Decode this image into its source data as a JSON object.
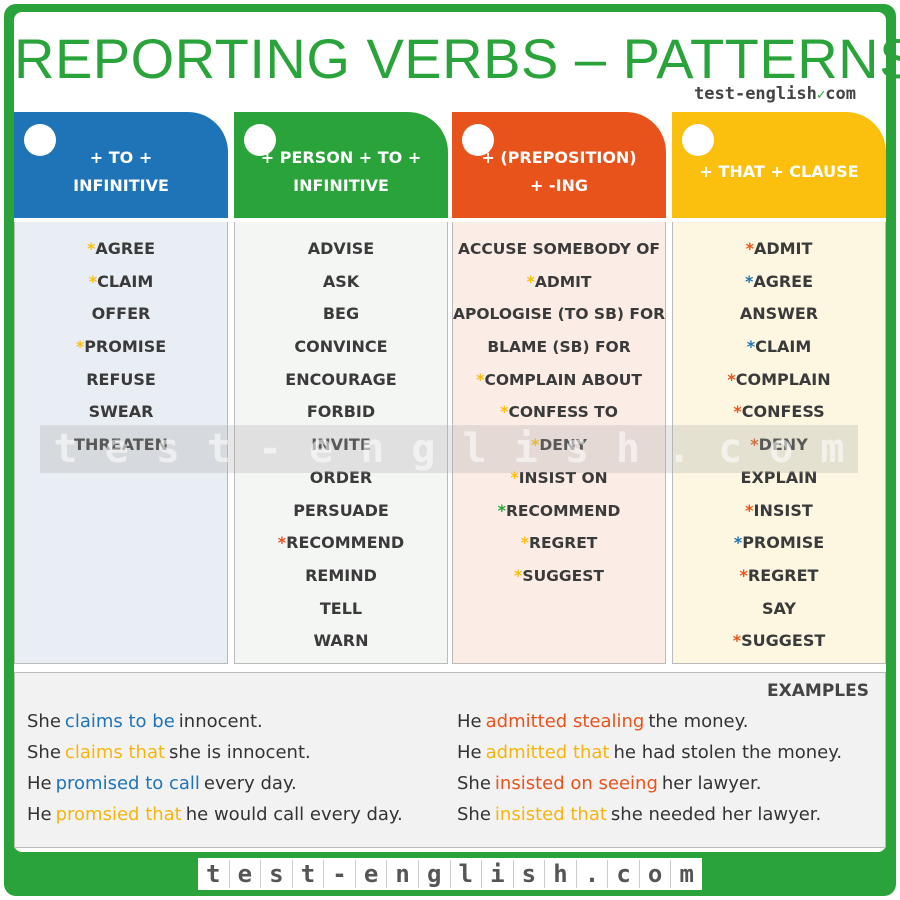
{
  "title": "REPORTING VERBS – PATTERNS",
  "site_top": "test-english",
  "site_top_suffix": "com",
  "columns": [
    {
      "label": "+ TO +\nINFINITIVE",
      "color": "#1f73b7",
      "verbs": [
        {
          "star": "*",
          "star_color": "#fbbf0e",
          "text": "AGREE"
        },
        {
          "star": "*",
          "star_color": "#fbbf0e",
          "text": "CLAIM"
        },
        {
          "star": "",
          "star_color": "",
          "text": "OFFER"
        },
        {
          "star": "*",
          "star_color": "#fbbf0e",
          "text": "PROMISE"
        },
        {
          "star": "",
          "star_color": "",
          "text": "REFUSE"
        },
        {
          "star": "",
          "star_color": "",
          "text": "SWEAR"
        },
        {
          "star": "",
          "star_color": "",
          "text": "THREATEN"
        }
      ]
    },
    {
      "label": "+ PERSON + TO +\nINFINITIVE",
      "color": "#2aa43a",
      "verbs": [
        {
          "star": "",
          "star_color": "",
          "text": "ADVISE"
        },
        {
          "star": "",
          "star_color": "",
          "text": "ASK"
        },
        {
          "star": "",
          "star_color": "",
          "text": "BEG"
        },
        {
          "star": "",
          "star_color": "",
          "text": "CONVINCE"
        },
        {
          "star": "",
          "star_color": "",
          "text": "ENCOURAGE"
        },
        {
          "star": "",
          "star_color": "",
          "text": "FORBID"
        },
        {
          "star": "",
          "star_color": "",
          "text": "INVITE"
        },
        {
          "star": "",
          "star_color": "",
          "text": "ORDER"
        },
        {
          "star": "",
          "star_color": "",
          "text": "PERSUADE"
        },
        {
          "star": "*",
          "star_color": "#e8531c",
          "text": "RECOMMEND"
        },
        {
          "star": "",
          "star_color": "",
          "text": "REMIND"
        },
        {
          "star": "",
          "star_color": "",
          "text": "TELL"
        },
        {
          "star": "",
          "star_color": "",
          "text": "WARN"
        }
      ]
    },
    {
      "label": "+ (PREPOSITION)\n+ -ING",
      "color": "#e8531c",
      "verbs": [
        {
          "star": "",
          "star_color": "",
          "text": "ACCUSE SOMEBODY OF"
        },
        {
          "star": "*",
          "star_color": "#fbbf0e",
          "text": "ADMIT"
        },
        {
          "star": "",
          "star_color": "",
          "text": "APOLOGISE (TO SB) FOR"
        },
        {
          "star": "",
          "star_color": "",
          "text": "BLAME (SB) FOR"
        },
        {
          "star": "*",
          "star_color": "#fbbf0e",
          "text": "COMPLAIN ABOUT"
        },
        {
          "star": "*",
          "star_color": "#fbbf0e",
          "text": "CONFESS TO"
        },
        {
          "star": "*",
          "star_color": "#fbbf0e",
          "text": "DENY"
        },
        {
          "star": "*",
          "star_color": "#fbbf0e",
          "text": "INSIST ON"
        },
        {
          "star": "*",
          "star_color": "#2aa43a",
          "text": "RECOMMEND"
        },
        {
          "star": "*",
          "star_color": "#fbbf0e",
          "text": "REGRET"
        },
        {
          "star": "*",
          "star_color": "#fbbf0e",
          "text": "SUGGEST"
        }
      ]
    },
    {
      "label": "+ THAT + CLAUSE",
      "color": "#fbbf0e",
      "verbs": [
        {
          "star": "*",
          "star_color": "#e8531c",
          "text": "ADMIT"
        },
        {
          "star": "*",
          "star_color": "#1f73b7",
          "text": "AGREE"
        },
        {
          "star": "",
          "star_color": "",
          "text": "ANSWER"
        },
        {
          "star": "*",
          "star_color": "#1f73b7",
          "text": "CLAIM"
        },
        {
          "star": "*",
          "star_color": "#e8531c",
          "text": "COMPLAIN"
        },
        {
          "star": "*",
          "star_color": "#e8531c",
          "text": "CONFESS"
        },
        {
          "star": "*",
          "star_color": "#e8531c",
          "text": "DENY"
        },
        {
          "star": "",
          "star_color": "",
          "text": "EXPLAIN"
        },
        {
          "star": "*",
          "star_color": "#e8531c",
          "text": "INSIST"
        },
        {
          "star": "*",
          "star_color": "#1f73b7",
          "text": "PROMISE"
        },
        {
          "star": "*",
          "star_color": "#e8531c",
          "text": "REGRET"
        },
        {
          "star": "",
          "star_color": "",
          "text": "SAY"
        },
        {
          "star": "*",
          "star_color": "#e8531c",
          "text": "SUGGEST"
        }
      ]
    }
  ],
  "watermark": [
    "t",
    "e",
    "s",
    "t",
    "-",
    "e",
    "n",
    "g",
    "l",
    "i",
    "s",
    "h",
    ".",
    "c",
    "o",
    "m"
  ],
  "examples_title": "EXAMPLES",
  "examples_left": [
    [
      {
        "t": "She",
        "c": ""
      },
      {
        "t": "claims to be",
        "c": "blue"
      },
      {
        "t": "innocent.",
        "c": ""
      }
    ],
    [
      {
        "t": "She",
        "c": ""
      },
      {
        "t": "claims that",
        "c": "yellow"
      },
      {
        "t": "she is innocent.",
        "c": ""
      }
    ],
    [
      {
        "t": "He",
        "c": ""
      },
      {
        "t": "promised to call",
        "c": "blue"
      },
      {
        "t": "every day.",
        "c": ""
      }
    ],
    [
      {
        "t": "He",
        "c": ""
      },
      {
        "t": "promsied that",
        "c": "yellow"
      },
      {
        "t": "he would call every day.",
        "c": ""
      }
    ]
  ],
  "examples_right": [
    [
      {
        "t": "He",
        "c": ""
      },
      {
        "t": "admitted stealing",
        "c": "orange"
      },
      {
        "t": "the money.",
        "c": ""
      }
    ],
    [
      {
        "t": "He",
        "c": ""
      },
      {
        "t": "admitted that",
        "c": "yellow"
      },
      {
        "t": "he had stolen the money.",
        "c": ""
      }
    ],
    [
      {
        "t": "She",
        "c": ""
      },
      {
        "t": "insisted on seeing",
        "c": "orange"
      },
      {
        "t": "her lawyer.",
        "c": ""
      }
    ],
    [
      {
        "t": "She",
        "c": ""
      },
      {
        "t": "insisted that",
        "c": "yellow"
      },
      {
        "t": "she needed her lawyer.",
        "c": ""
      }
    ]
  ],
  "footer": [
    "t",
    "e",
    "s",
    "t",
    "-",
    "e",
    "n",
    "g",
    "l",
    "i",
    "s",
    "h",
    ".",
    "c",
    "o",
    "m"
  ]
}
